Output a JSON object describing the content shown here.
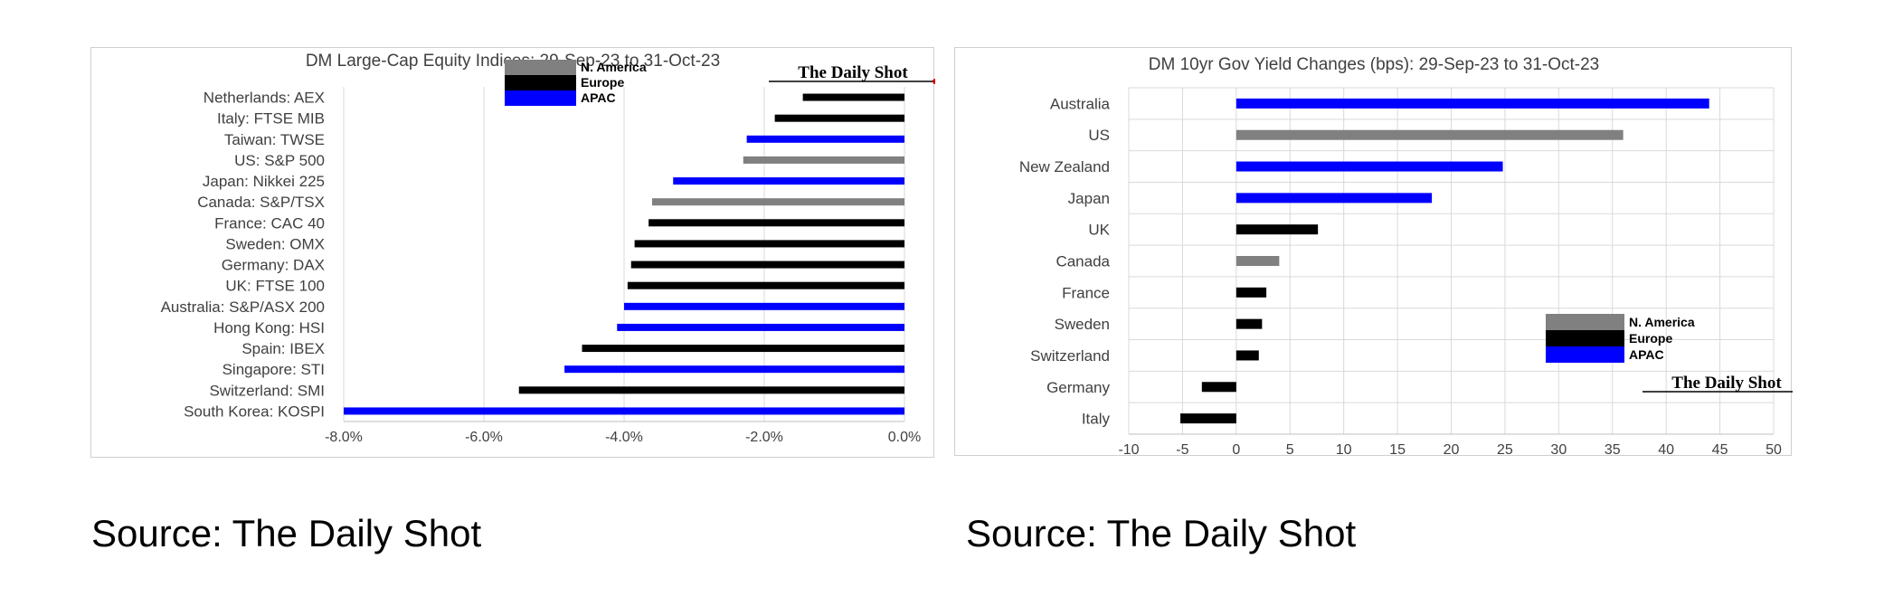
{
  "colors": {
    "north_america": "#808080",
    "europe": "#000000",
    "apac": "#0000FF",
    "grid": "#d9d9d9",
    "text": "#404040"
  },
  "chart_data": [
    {
      "type": "bar",
      "orientation": "horizontal",
      "title": "DM Large-Cap Equity Indices: 29-Sep-23 to 31-Oct-23",
      "watermark": "The Daily Shot",
      "legend": [
        "N. America",
        "Europe",
        "APAC"
      ],
      "legend_position": "top-center",
      "xlim": [
        -8.0,
        0.0
      ],
      "xticks": [
        "-8.0%",
        "-6.0%",
        "-4.0%",
        "-2.0%",
        "0.0%"
      ],
      "xtick_values": [
        -8,
        -6,
        -4,
        -2,
        0
      ],
      "grid": true,
      "categories": [
        "Netherlands: AEX",
        "Italy: FTSE MIB",
        "Taiwan: TWSE",
        "US: S&P 500",
        "Japan: Nikkei 225",
        "Canada: S&P/TSX",
        "France: CAC 40",
        "Sweden: OMX",
        "Germany: DAX",
        "UK: FTSE 100",
        "Australia: S&P/ASX 200",
        "Hong Kong: HSI",
        "Spain: IBEX",
        "Singapore: STI",
        "Switzerland: SMI",
        "South Korea: KOSPI"
      ],
      "values": [
        -1.45,
        -1.85,
        -2.25,
        -2.3,
        -3.3,
        -3.6,
        -3.65,
        -3.85,
        -3.9,
        -3.95,
        -4.0,
        -4.1,
        -4.6,
        -4.85,
        -5.5,
        -8.0
      ],
      "groups": [
        "Europe",
        "Europe",
        "APAC",
        "N. America",
        "APAC",
        "N. America",
        "Europe",
        "Europe",
        "Europe",
        "Europe",
        "APAC",
        "APAC",
        "Europe",
        "APAC",
        "Europe",
        "APAC"
      ]
    },
    {
      "type": "bar",
      "orientation": "horizontal",
      "title": "DM 10yr Gov Yield Changes (bps): 29-Sep-23 to 31-Oct-23",
      "watermark": "The Daily Shot",
      "legend": [
        "N. America",
        "Europe",
        "APAC"
      ],
      "legend_position": "bottom-right",
      "xlim": [
        -10,
        50
      ],
      "xticks": [
        "-10",
        "-5",
        "0",
        "5",
        "10",
        "15",
        "20",
        "25",
        "30",
        "35",
        "40",
        "45",
        "50"
      ],
      "xtick_values": [
        -10,
        -5,
        0,
        5,
        10,
        15,
        20,
        25,
        30,
        35,
        40,
        45,
        50
      ],
      "grid": true,
      "categories": [
        "Australia",
        "US",
        "New Zealand",
        "Japan",
        "UK",
        "Canada",
        "France",
        "Sweden",
        "Switzerland",
        "Germany",
        "Italy"
      ],
      "values": [
        44,
        36,
        24.8,
        18.2,
        7.6,
        4.0,
        2.8,
        2.4,
        2.1,
        -3.2,
        -5.2
      ],
      "groups": [
        "APAC",
        "N. America",
        "APAC",
        "APAC",
        "Europe",
        "N. America",
        "Europe",
        "Europe",
        "Europe",
        "Europe",
        "Europe"
      ]
    }
  ],
  "footer": {
    "left_source": "Source: The Daily Shot",
    "right_source": "Source: The Daily Shot"
  }
}
